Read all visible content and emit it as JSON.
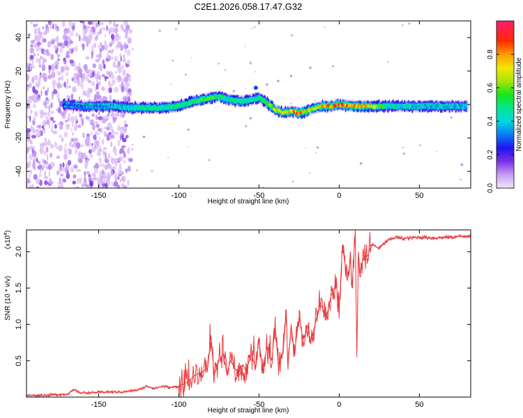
{
  "chart_data": [
    {
      "type": "heatmap",
      "title": "C2E1.2026.058.17.47.G32",
      "xlabel": "Height of straight line (km)",
      "ylabel": "Frequency (Hz)",
      "xlim": [
        -195,
        82
      ],
      "ylim": [
        -50,
        50
      ],
      "xticks": [
        -150,
        -100,
        -50,
        0,
        50
      ],
      "yticks": [
        -40,
        -20,
        0,
        20,
        40
      ],
      "colorbar": {
        "label": "Normalized spectral amplitude",
        "range": [
          0,
          1
        ],
        "ticks": [
          "0.0",
          "0.2",
          "0.4",
          "0.6",
          "0.8"
        ],
        "tick_values": [
          0,
          0.2,
          0.4,
          0.6,
          0.8
        ],
        "colormap": "rainbow-lavender-to-red"
      },
      "ridge": {
        "x": [
          -170,
          -160,
          -150,
          -140,
          -130,
          -120,
          -110,
          -100,
          -90,
          -80,
          -75,
          -70,
          -60,
          -55,
          -50,
          -45,
          -40,
          -35,
          -30,
          -25,
          -20,
          -15,
          -10,
          -5,
          0,
          10,
          20,
          30,
          40,
          50,
          60,
          70,
          80
        ],
        "frequency": [
          0,
          -1,
          -1,
          -1,
          -2,
          -2,
          -2,
          -1,
          2,
          4,
          5,
          3,
          2,
          3,
          4,
          1,
          -3,
          -5,
          -4,
          -5,
          -4,
          -2,
          -1,
          -1,
          0,
          -1,
          -1,
          -1,
          -1,
          -1,
          -1,
          -1,
          -1
        ],
        "amplitude": [
          0.3,
          0.35,
          0.35,
          0.4,
          0.45,
          0.5,
          0.5,
          0.55,
          0.6,
          0.6,
          0.55,
          0.5,
          0.55,
          0.5,
          0.5,
          0.6,
          0.75,
          0.75,
          0.8,
          0.95,
          0.75,
          0.7,
          0.85,
          0.9,
          0.95,
          0.85,
          0.75,
          0.5,
          0.45,
          0.42,
          0.42,
          0.42,
          0.4
        ]
      },
      "secondary_trace": {
        "x": [
          -52,
          -45,
          -38,
          -30,
          -18
        ],
        "frequency": [
          10,
          12,
          14,
          17,
          22
        ]
      }
    },
    {
      "type": "line",
      "title": "",
      "xlabel": "Height of straight line (km)",
      "ylabel": "SNR (10 * v/v)",
      "multiplier": "(x10^4)",
      "multiplier_base": "(x10",
      "multiplier_exp": "4",
      "multiplier_close": ")",
      "xlim": [
        -195,
        82
      ],
      "ylim": [
        0,
        2.3
      ],
      "xticks": [
        -150,
        -100,
        -50,
        0,
        50
      ],
      "yticks": [
        0.5,
        1.0,
        1.5,
        2.0
      ],
      "ytick_labels": [
        "0.5",
        "1.0",
        "1.5",
        "2.0"
      ],
      "series": [
        {
          "color": "#e8383d",
          "x": [
            -195,
            -180,
            -170,
            -165,
            -162,
            -155,
            -145,
            -135,
            -125,
            -120,
            -115,
            -110,
            -105,
            -100,
            -95,
            -90,
            -85,
            -82,
            -80,
            -78,
            -75,
            -72,
            -70,
            -68,
            -65,
            -62,
            -60,
            -58,
            -55,
            -52,
            -50,
            -48,
            -45,
            -42,
            -40,
            -38,
            -35,
            -33,
            -32,
            -30,
            -28,
            -25,
            -22,
            -20,
            -18,
            -15,
            -12,
            -10,
            -8,
            -5,
            -3,
            -2,
            0,
            2,
            5,
            7,
            8,
            10,
            11,
            12,
            13,
            15,
            18,
            20,
            25,
            30,
            35,
            40,
            50,
            60,
            70,
            80,
            82
          ],
          "y": [
            0.02,
            0.03,
            0.04,
            0.1,
            0.06,
            0.06,
            0.07,
            0.07,
            0.1,
            0.15,
            0.12,
            0.15,
            0.13,
            0.15,
            0.2,
            0.3,
            0.35,
            0.4,
            0.85,
            0.3,
            0.5,
            0.6,
            0.3,
            0.5,
            0.4,
            0.3,
            0.45,
            0.35,
            0.6,
            0.4,
            0.8,
            0.35,
            0.7,
            0.5,
            1.0,
            0.45,
            0.6,
            1.2,
            0.4,
            1.0,
            0.6,
            1.1,
            0.7,
            1.0,
            0.75,
            1.0,
            1.3,
            1.2,
            1.1,
            1.4,
            1.5,
            1.6,
            1.2,
            2.1,
            1.6,
            1.9,
            1.5,
            2.3,
            0.55,
            2.0,
            1.7,
            1.9,
            1.95,
            2.1,
            2.05,
            2.15,
            2.2,
            2.18,
            2.2,
            2.19,
            2.2,
            2.22,
            2.22
          ]
        }
      ]
    }
  ]
}
